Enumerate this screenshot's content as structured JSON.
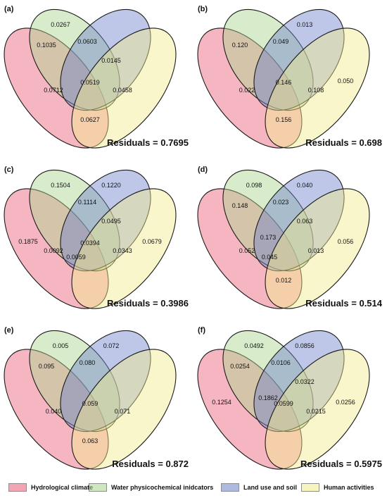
{
  "colors": {
    "hydrological": "#ec5d76",
    "water": "#a9d48e",
    "land": "#6f82c9",
    "human": "#f3ec8e"
  },
  "legend": [
    {
      "label": "Hydrological climate",
      "color_key": "hydrological"
    },
    {
      "label": "Water physicochemical inidcators",
      "color_key": "water"
    },
    {
      "label": "Land use and soil",
      "color_key": "land"
    },
    {
      "label": "Human activities",
      "color_key": "human"
    }
  ],
  "panels": [
    {
      "tag": "(a)",
      "residuals_label": "Residuals = ",
      "residuals_value": "0.7695",
      "values": {
        "A": "",
        "B": "0.0267",
        "C": "",
        "D": "",
        "AB": "0.1035",
        "BC": "0.0603",
        "CD": "0.0145",
        "AC": "0.0712",
        "BD": "0.0458",
        "ABCD": "0.0519",
        "AD": "0.0627"
      }
    },
    {
      "tag": "(b)",
      "residuals_label": "Residuals = ",
      "residuals_value": "0.698",
      "values": {
        "A": "",
        "B": "",
        "C": "0.013",
        "D": "0.050",
        "AB": "0.120",
        "BC": "0.049",
        "CD": "",
        "AC": "0.022",
        "BD": "0.108",
        "ABCD": "0.146",
        "AD": "0.156"
      }
    },
    {
      "tag": "(c)",
      "residuals_label": "Residuals = ",
      "residuals_value": "0.3986",
      "values": {
        "A": "0.1875",
        "B": "0.1504",
        "C": "0.1220",
        "D": "0.0679",
        "AB": "",
        "BC": "0.1114",
        "CD": "0.0495",
        "AC": "0.0092",
        "BD": "0.0343",
        "ABCD": "0.0394",
        "AD": "",
        "ACD": "0.0059"
      }
    },
    {
      "tag": "(d)",
      "residuals_label": "Residuals = ",
      "residuals_value": "0.514",
      "values": {
        "A": "",
        "B": "0.098",
        "C": "0.040",
        "D": "0.056",
        "AB": "0.148",
        "BC": "0.023",
        "CD": "0.063",
        "AC": "0.052",
        "BD": "0.013",
        "ABCD": "",
        "AD": "0.012",
        "ABC": "0.173",
        "ACD": "0.045"
      }
    },
    {
      "tag": "(e)",
      "residuals_label": "Residuals = ",
      "residuals_value": "0.872",
      "values": {
        "A": "",
        "B": "0.005",
        "C": "0.072",
        "D": "",
        "AB": "0.095",
        "BC": "0.080",
        "CD": "",
        "AC": "0.040",
        "BD": "0.071",
        "ABCD": "0.059",
        "AD": "0.063"
      }
    },
    {
      "tag": "(f)",
      "residuals_label": "Residuals = ",
      "residuals_value": "0.5975",
      "values": {
        "A": "0.1254",
        "B": "0.0492",
        "C": "0.0856",
        "D": "0.0256",
        "AB": "0.0254",
        "BC": "0.0106",
        "CD": "0.0322",
        "AC": "",
        "BD": "0.0215",
        "ABCD": "0.0599",
        "AD": "",
        "ABC": "0.1862"
      }
    }
  ]
}
